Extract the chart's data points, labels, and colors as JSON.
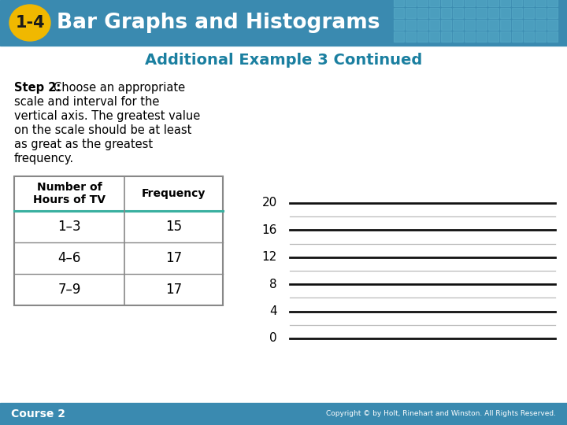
{
  "header_bg_color": "#3a8ab0",
  "header_text": "Bar Graphs and Histograms",
  "badge_text": "1-4",
  "badge_bg": "#f0b800",
  "subtitle": "Additional Example 3 Continued",
  "subtitle_color": "#1a7fa0",
  "body_bg": "#ffffff",
  "step2_bold": "Step 2:",
  "step2_rest": " Choose an appropriate\nscale and interval for the\nvertical axis. The greatest value\non the scale should be at least\nas great as the greatest\nfrequency.",
  "table_header_col1": "Number of\nHours of TV",
  "table_header_col2": "Frequency",
  "table_rows": [
    [
      "1–3",
      "15"
    ],
    [
      "4–6",
      "17"
    ],
    [
      "7–9",
      "17"
    ]
  ],
  "table_header_line_color": "#3ab0a0",
  "table_border_color": "#888888",
  "y_ticks": [
    0,
    4,
    8,
    12,
    16,
    20
  ],
  "footer_left": "Course 2",
  "footer_right": "Copyright © by Holt, Rinehart and Winston. All Rights Reserved.",
  "footer_bg": "#3a8ab0",
  "footer_text_color": "#ffffff",
  "grid_line_color_dark": "#111111",
  "grid_line_color_light": "#bbbbbb",
  "tile_color": "#5aafca"
}
